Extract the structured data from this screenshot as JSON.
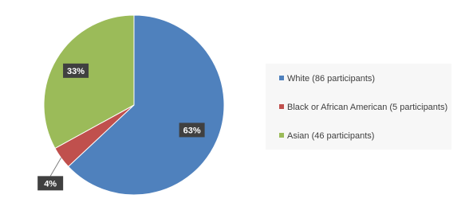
{
  "chart_data": {
    "type": "pie",
    "categories": [
      "White (86 participants)",
      "Black or African American (5 participants)",
      "Asian (46 participants)"
    ],
    "values": [
      63,
      4,
      33
    ],
    "value_labels": [
      "63%",
      "4%",
      "33%"
    ],
    "colors": [
      "#4f81bd",
      "#c0504d",
      "#9bbb59"
    ],
    "legend": "right"
  }
}
